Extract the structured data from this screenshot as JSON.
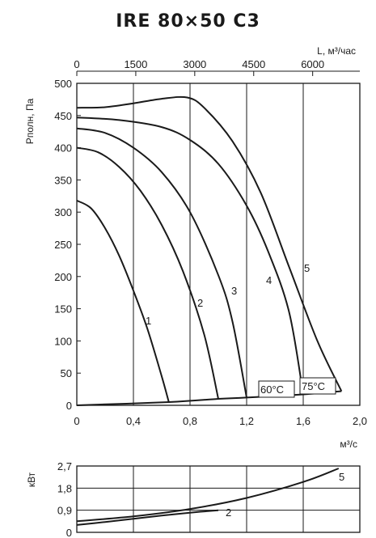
{
  "chart_data": [
    {
      "type": "line",
      "title": "IRE 80×50 C3",
      "xlabel": "м³/c",
      "ylabel": "Pполн, Па",
      "x2label": "L, м³/час",
      "xlim": [
        0,
        2.0
      ],
      "ylim": [
        0,
        500
      ],
      "x2lim": [
        0,
        7200
      ],
      "grid": true,
      "x_ticks": [
        "0",
        "0,4",
        "0,8",
        "1,2",
        "1,6",
        "2,0"
      ],
      "y_ticks": [
        "0",
        "50",
        "100",
        "150",
        "200",
        "250",
        "300",
        "350",
        "400",
        "450",
        "500"
      ],
      "x2_ticks": [
        "0",
        "1500",
        "3000",
        "4500",
        "6000"
      ],
      "series": [
        {
          "name": "1",
          "x": [
            0.0,
            0.1,
            0.2,
            0.3,
            0.4,
            0.5,
            0.6,
            0.65
          ],
          "y": [
            318,
            306,
            275,
            232,
            178,
            118,
            45,
            5
          ]
        },
        {
          "name": "2",
          "x": [
            0.0,
            0.15,
            0.3,
            0.45,
            0.6,
            0.75,
            0.9,
            1.0
          ],
          "y": [
            400,
            393,
            370,
            333,
            280,
            208,
            110,
            10
          ]
        },
        {
          "name": "3",
          "x": [
            0.0,
            0.2,
            0.4,
            0.6,
            0.8,
            1.0,
            1.1,
            1.2
          ],
          "y": [
            430,
            423,
            400,
            362,
            300,
            202,
            130,
            12
          ]
        },
        {
          "name": "4",
          "x": [
            0.0,
            0.3,
            0.6,
            0.8,
            1.0,
            1.2,
            1.35,
            1.5,
            1.6
          ],
          "y": [
            447,
            443,
            432,
            412,
            375,
            310,
            240,
            145,
            17
          ]
        },
        {
          "name": "5",
          "x": [
            0.0,
            0.2,
            0.4,
            0.6,
            0.78,
            0.9,
            1.1,
            1.3,
            1.5,
            1.7,
            1.87
          ],
          "y": [
            462,
            463,
            469,
            476,
            478,
            462,
            410,
            330,
            215,
            100,
            22
          ]
        }
      ],
      "annotations": [
        "1",
        "2",
        "3",
        "4",
        "5",
        "60°C",
        "75°C"
      ]
    },
    {
      "type": "line",
      "ylabel": "кВт",
      "xlim": [
        0,
        2.0
      ],
      "ylim": [
        0,
        2.7
      ],
      "grid": true,
      "y_ticks": [
        "0",
        "0,9",
        "1,8",
        "2,7"
      ],
      "series": [
        {
          "name": "2",
          "x": [
            0.0,
            0.2,
            0.4,
            0.6,
            0.8,
            1.0
          ],
          "y": [
            0.3,
            0.42,
            0.55,
            0.68,
            0.8,
            0.9
          ]
        },
        {
          "name": "5",
          "x": [
            0.0,
            0.4,
            0.8,
            1.2,
            1.6,
            1.85
          ],
          "y": [
            0.45,
            0.65,
            0.95,
            1.4,
            2.05,
            2.6
          ]
        }
      ]
    }
  ]
}
